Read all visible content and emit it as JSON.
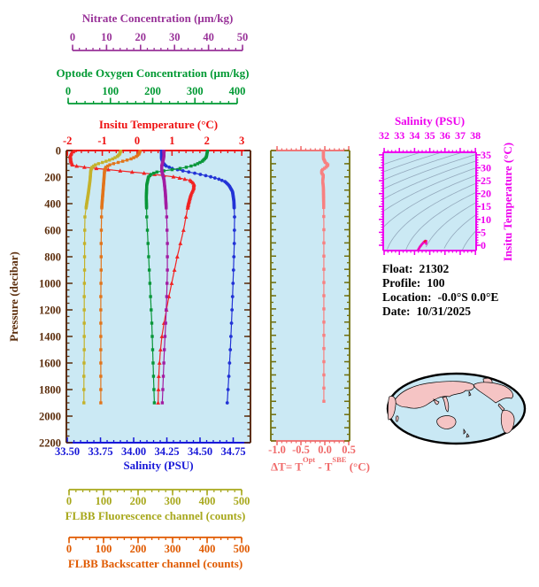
{
  "page": {
    "background": "#ffffff"
  },
  "info": {
    "lines": [
      {
        "label": "Float:",
        "value": "21302"
      },
      {
        "label": "Profile:",
        "value": "100"
      },
      {
        "label": "Location:",
        "value": "-0.0°S  0.0°E"
      },
      {
        "label": "Date:",
        "value": "10/31/2025"
      }
    ]
  },
  "map": {
    "ocean_color": "#C9E8F4",
    "land_color": "#F5C4C4",
    "outline_color": "#000000"
  },
  "chart_data": {
    "type": "line",
    "title": "Float profile plot",
    "plot_background": "#CBE9F4",
    "sampling": {
      "dense_max_pressure": 440,
      "dense_marker_step": 9,
      "sparse_marker_step": 100,
      "max_pressure": 1900
    },
    "panels": {
      "profile": {
        "pressure_axis": {
          "label": "Pressure (decibar)",
          "min": 0,
          "max": 2200,
          "tick_step": 200,
          "minor_step": 50,
          "color": "#5C2E0D"
        },
        "axes": {
          "temperature": {
            "title": "Insitu Temperature (°C)",
            "color": "#EE1111",
            "tick_values": [
              -2,
              -1,
              0,
              1,
              2,
              3
            ],
            "tick_labels": [
              "-2",
              "-1",
              "0",
              "1",
              "2",
              "3"
            ],
            "minor_step": 0.2,
            "edge_min": -2.03,
            "edge_max": 3.25
          },
          "salinity": {
            "title": "Salinity (PSU)",
            "color": "#1818D8",
            "tick_values": [
              33.5,
              33.75,
              34.0,
              34.25,
              34.5,
              34.75
            ],
            "tick_labels": [
              "33.50",
              "33.75",
              "34.00",
              "34.25",
              "34.50",
              "34.75"
            ],
            "minor_step": 0.05,
            "edge_min": 33.493,
            "edge_max": 34.88
          },
          "nitrate": {
            "title": "Nitrate Concentration (μm/kg)",
            "color": "#993399",
            "tick_values": [
              0,
              10,
              20,
              30,
              40,
              50
            ],
            "tick_labels": [
              "0",
              "10",
              "20",
              "30",
              "40",
              "50"
            ],
            "minor_step": 2,
            "edge_min": -1.82,
            "edge_max": 52.34
          },
          "oxygen": {
            "title": "Optode Oxygen Concentration (μm/kg)",
            "color": "#009933",
            "tick_values": [
              0,
              100,
              200,
              300,
              400
            ],
            "tick_labels": [
              "0",
              "100",
              "200",
              "300",
              "400"
            ],
            "minor_step": 20,
            "edge_min": -4.2,
            "edge_max": 431.5
          },
          "fluorescence": {
            "title": "FLBB Fluorescence channel (counts)",
            "color": "#A8A81C",
            "tick_values": [
              0,
              100,
              200,
              300,
              400,
              500
            ],
            "tick_labels": [
              "0",
              "100",
              "200",
              "300",
              "400",
              "500"
            ],
            "minor_step": 20,
            "edge_min": -7.7,
            "edge_max": 525.6
          },
          "backscatter": {
            "title": "FLBB Backscatter channel (counts)",
            "color": "#E05A00",
            "tick_values": [
              0,
              100,
              200,
              300,
              400,
              500
            ],
            "tick_labels": [
              "0",
              "100",
              "200",
              "300",
              "400",
              "500"
            ],
            "minor_step": 20,
            "edge_min": -7.7,
            "edge_max": 525.6
          }
        },
        "series": [
          {
            "id": "temperature",
            "axis": "temperature",
            "color": "#F22222",
            "marker": "triangle",
            "control_points": [
              [
                0,
                -1.78
              ],
              [
                15,
                -1.88
              ],
              [
                40,
                -1.92
              ],
              [
                80,
                -1.9
              ],
              [
                112,
                -1.85
              ],
              [
                125,
                -1.55
              ],
              [
                150,
                -0.6
              ],
              [
                175,
                0.35
              ],
              [
                200,
                1.1
              ],
              [
                225,
                1.52
              ],
              [
                250,
                1.63
              ],
              [
                285,
                1.62
              ],
              [
                330,
                1.54
              ],
              [
                400,
                1.47
              ],
              [
                500,
                1.4
              ],
              [
                600,
                1.33
              ],
              [
                700,
                1.24
              ],
              [
                800,
                1.15
              ],
              [
                900,
                1.07
              ],
              [
                1000,
                0.99
              ],
              [
                1100,
                0.91
              ],
              [
                1200,
                0.84
              ],
              [
                1300,
                0.77
              ],
              [
                1400,
                0.71
              ],
              [
                1500,
                0.67
              ],
              [
                1600,
                0.64
              ],
              [
                1700,
                0.62
              ],
              [
                1800,
                0.61
              ],
              [
                1900,
                0.6
              ]
            ]
          },
          {
            "id": "salinity",
            "axis": "salinity",
            "color": "#2233D6",
            "marker": "circle",
            "control_points": [
              [
                0,
                34.21
              ],
              [
                60,
                34.21
              ],
              [
                90,
                34.22
              ],
              [
                115,
                34.24
              ],
              [
                135,
                34.29
              ],
              [
                155,
                34.38
              ],
              [
                175,
                34.48
              ],
              [
                195,
                34.57
              ],
              [
                215,
                34.64
              ],
              [
                235,
                34.69
              ],
              [
                265,
                34.72
              ],
              [
                310,
                34.745
              ],
              [
                380,
                34.755
              ],
              [
                500,
                34.76
              ],
              [
                700,
                34.758
              ],
              [
                900,
                34.752
              ],
              [
                1100,
                34.745
              ],
              [
                1300,
                34.737
              ],
              [
                1500,
                34.728
              ],
              [
                1700,
                34.717
              ],
              [
                1900,
                34.705
              ]
            ]
          },
          {
            "id": "oxygen",
            "axis": "oxygen",
            "color": "#089638",
            "marker": "square",
            "control_points": [
              [
                0,
                330
              ],
              [
                50,
                327
              ],
              [
                80,
                318
              ],
              [
                105,
                303
              ],
              [
                122,
                286
              ],
              [
                138,
                260
              ],
              [
                150,
                232
              ],
              [
                162,
                210
              ],
              [
                178,
                197
              ],
              [
                200,
                190
              ],
              [
                260,
                186
              ],
              [
                350,
                185
              ],
              [
                500,
                186
              ],
              [
                700,
                189
              ],
              [
                900,
                192
              ],
              [
                1100,
                195
              ],
              [
                1300,
                198
              ],
              [
                1500,
                200
              ],
              [
                1700,
                202
              ],
              [
                1900,
                204
              ]
            ]
          },
          {
            "id": "nitrate",
            "axis": "nitrate",
            "color": "#A21CA2",
            "marker": "square",
            "control_points": [
              [
                0,
                26.8
              ],
              [
                40,
                26.9
              ],
              [
                80,
                26.6
              ],
              [
                120,
                26.2
              ],
              [
                160,
                26.3
              ],
              [
                220,
                26.9
              ],
              [
                320,
                27.3
              ],
              [
                500,
                27.7
              ],
              [
                700,
                27.9
              ],
              [
                900,
                27.9
              ],
              [
                1100,
                27.7
              ],
              [
                1300,
                27.4
              ],
              [
                1500,
                27.0
              ],
              [
                1700,
                26.7
              ],
              [
                1900,
                26.4
              ]
            ]
          },
          {
            "id": "fluorescence",
            "axis": "fluorescence",
            "color": "#C4B22A",
            "marker": "square",
            "control_points": [
              [
                0,
                150
              ],
              [
                25,
                147
              ],
              [
                45,
                140
              ],
              [
                65,
                125
              ],
              [
                85,
                103
              ],
              [
                105,
                78
              ],
              [
                125,
                67
              ],
              [
                150,
                63
              ],
              [
                220,
                61
              ],
              [
                320,
                56
              ],
              [
                420,
                50
              ],
              [
                500,
                46
              ],
              [
                700,
                45
              ],
              [
                900,
                45
              ],
              [
                1100,
                44
              ],
              [
                1300,
                44
              ],
              [
                1500,
                44
              ],
              [
                1700,
                43
              ],
              [
                1900,
                43
              ]
            ]
          },
          {
            "id": "backscatter",
            "axis": "backscatter",
            "color": "#E2741A",
            "marker": "square",
            "control_points": [
              [
                0,
                206
              ],
              [
                25,
                203
              ],
              [
                45,
                195
              ],
              [
                65,
                178
              ],
              [
                85,
                150
              ],
              [
                105,
                120
              ],
              [
                125,
                107
              ],
              [
                150,
                103
              ],
              [
                220,
                101
              ],
              [
                320,
                98
              ],
              [
                420,
                95
              ],
              [
                500,
                94
              ],
              [
                700,
                93
              ],
              [
                900,
                93
              ],
              [
                1100,
                92
              ],
              [
                1300,
                92
              ],
              [
                1500,
                92
              ],
              [
                1700,
                92
              ],
              [
                1900,
                92
              ]
            ]
          }
        ]
      },
      "delta": {
        "axis": {
          "color": "#F06A6A",
          "side_color": "#70700E",
          "tick_values": [
            -1.0,
            -0.5,
            0.0,
            0.5
          ],
          "tick_labels": [
            "-1.0",
            "-0.5",
            "0.0",
            "0.5"
          ],
          "minor_step": 0.1,
          "edge_min": -1.13,
          "edge_max": 0.518,
          "title_parts": {
            "pre": "ΔT= T",
            "sup1": "Opt",
            "mid": " - T",
            "sup2": "SBE",
            "post": " (°C)"
          }
        },
        "series": {
          "id": "delta_t",
          "color": "#F88080",
          "marker": "square",
          "control_points": [
            [
              0,
              -0.03
            ],
            [
              60,
              -0.03
            ],
            [
              90,
              0.01
            ],
            [
              110,
              0.07
            ],
            [
              128,
              0.02
            ],
            [
              148,
              -0.06
            ],
            [
              168,
              -0.07
            ],
            [
              190,
              -0.03
            ],
            [
              230,
              -0.045
            ],
            [
              280,
              -0.03
            ],
            [
              400,
              -0.025
            ],
            [
              600,
              -0.02
            ],
            [
              1900,
              -0.02
            ]
          ]
        }
      },
      "ts": {
        "frame_color": "#EE00EE",
        "x_axis": {
          "title": "Salinity (PSU)",
          "tick_values": [
            32,
            33,
            34,
            35,
            36,
            37,
            38
          ],
          "tick_labels": [
            "32",
            "33",
            "34",
            "35",
            "36",
            "37",
            "38"
          ],
          "minor_step": 0.25,
          "edge_min": 31.94,
          "edge_max": 38.05
        },
        "y_axis": {
          "title": "Insitu Temperature (°C)",
          "tick_values": [
            0,
            5,
            10,
            15,
            20,
            25,
            30,
            35
          ],
          "tick_labels": [
            "0",
            "5",
            "10",
            "15",
            "20",
            "25",
            "30",
            "35"
          ],
          "minor_step": 1,
          "edge_min": -2.06,
          "edge_max": 36.0
        },
        "isopycnals": {
          "sigma_min": 19,
          "sigma_max": 32,
          "step": 1,
          "color": "#93A8BC"
        },
        "track_color": "#F00CC0",
        "tip_color": "#E82020"
      }
    }
  }
}
